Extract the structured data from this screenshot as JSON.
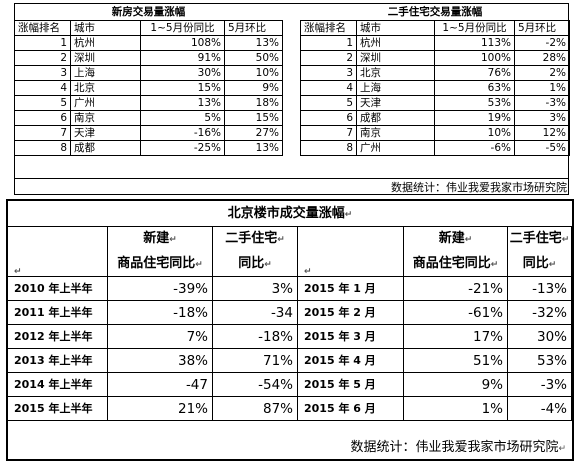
{
  "new_house_table": {
    "title": "新房交易量涨幅",
    "headers": [
      "涨幅排名",
      "城市",
      "1~5月份同比",
      "5月环比"
    ],
    "rows": [
      [
        "1",
        "杭州",
        "108%",
        "13%"
      ],
      [
        "2",
        "深圳",
        "91%",
        "50%"
      ],
      [
        "3",
        "上海",
        "30%",
        "10%"
      ],
      [
        "4",
        "北京",
        "15%",
        "9%"
      ],
      [
        "5",
        "广州",
        "13%",
        "18%"
      ],
      [
        "6",
        "南京",
        "5%",
        "15%"
      ],
      [
        "7",
        "天津",
        "-16%",
        "27%"
      ],
      [
        "8",
        "成都",
        "-25%",
        "13%"
      ]
    ]
  },
  "second_hand_table": {
    "title": "二手住宅交易量涨幅",
    "headers": [
      "涨幅排名",
      "城市",
      "1~5月份同比",
      "5月环比"
    ],
    "rows": [
      [
        "1",
        "杭州",
        "113%",
        "-2%"
      ],
      [
        "2",
        "深圳",
        "100%",
        "28%"
      ],
      [
        "3",
        "北京",
        "76%",
        "2%"
      ],
      [
        "4",
        "上海",
        "63%",
        "1%"
      ],
      [
        "5",
        "天津",
        "53%",
        "-3%"
      ],
      [
        "6",
        "成都",
        "19%",
        "3%"
      ],
      [
        "7",
        "南京",
        "10%",
        "12%"
      ],
      [
        "8",
        "广州",
        "-6%",
        "-5%"
      ]
    ]
  },
  "top_source": "数据统计：伟业我爱我家市场研究院",
  "beijing_table": {
    "title": "北京楼市成交量涨幅",
    "header_new_line1": "新建",
    "header_new_line2": "商品住宅同比",
    "header_second_line1": "二手住宅",
    "header_second_line2": "同比",
    "left_rows": [
      [
        "2010 年上半年",
        "-39%",
        "3%"
      ],
      [
        "2011 年上半年",
        "-18%",
        "-34"
      ],
      [
        "2012 年上半年",
        "7%",
        "-18%"
      ],
      [
        "2013 年上半年",
        "38%",
        "71%"
      ],
      [
        "2014 年上半年",
        "-47",
        "-54%"
      ],
      [
        "2015 年上半年",
        "21%",
        "87%"
      ]
    ],
    "right_rows": [
      [
        "2015 年 1 月",
        "-21%",
        "-13%"
      ],
      [
        "2015 年 2 月",
        "-61%",
        "-32%"
      ],
      [
        "2015 年 3 月",
        "17%",
        "30%"
      ],
      [
        "2015 年 4 月",
        "51%",
        "53%"
      ],
      [
        "2015 年 5 月",
        "9%",
        "-3%"
      ],
      [
        "2015 年 6 月",
        "1%",
        "-4%"
      ]
    ],
    "source": "数据统计：伟业我爱我家市场研究院"
  },
  "return_mark": "↵"
}
